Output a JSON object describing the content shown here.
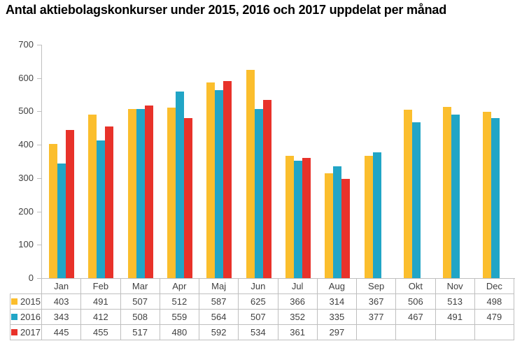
{
  "title": "Antal aktiebolagskonkurser under 2015, 2016 och 2017 uppdelat per månad",
  "colors": {
    "series_2015": "#FBBE2D",
    "series_2016": "#21A5C6",
    "series_2017": "#E8322A",
    "axis_line": "#bfbfbf",
    "text": "#404040"
  },
  "chart_data": {
    "type": "bar",
    "title": "Antal aktiebolagskonkurser under 2015, 2016 och 2017 uppdelat per månad",
    "categories": [
      "Jan",
      "Feb",
      "Mar",
      "Apr",
      "Maj",
      "Jun",
      "Jul",
      "Aug",
      "Sep",
      "Okt",
      "Nov",
      "Dec"
    ],
    "series": [
      {
        "name": "2015",
        "color": "#FBBE2D",
        "values": [
          403,
          491,
          507,
          512,
          587,
          625,
          366,
          314,
          367,
          506,
          513,
          498
        ]
      },
      {
        "name": "2016",
        "color": "#21A5C6",
        "values": [
          343,
          412,
          508,
          559,
          564,
          507,
          352,
          335,
          377,
          467,
          491,
          479
        ]
      },
      {
        "name": "2017",
        "color": "#E8322A",
        "values": [
          445,
          455,
          517,
          480,
          592,
          534,
          361,
          297,
          null,
          null,
          null,
          null
        ]
      }
    ],
    "xlabel": "",
    "ylabel": "",
    "ylim": [
      0,
      700
    ],
    "y_ticks": [
      0,
      100,
      200,
      300,
      400,
      500,
      600,
      700
    ],
    "grid": false,
    "legend_position": "table-left-column"
  }
}
